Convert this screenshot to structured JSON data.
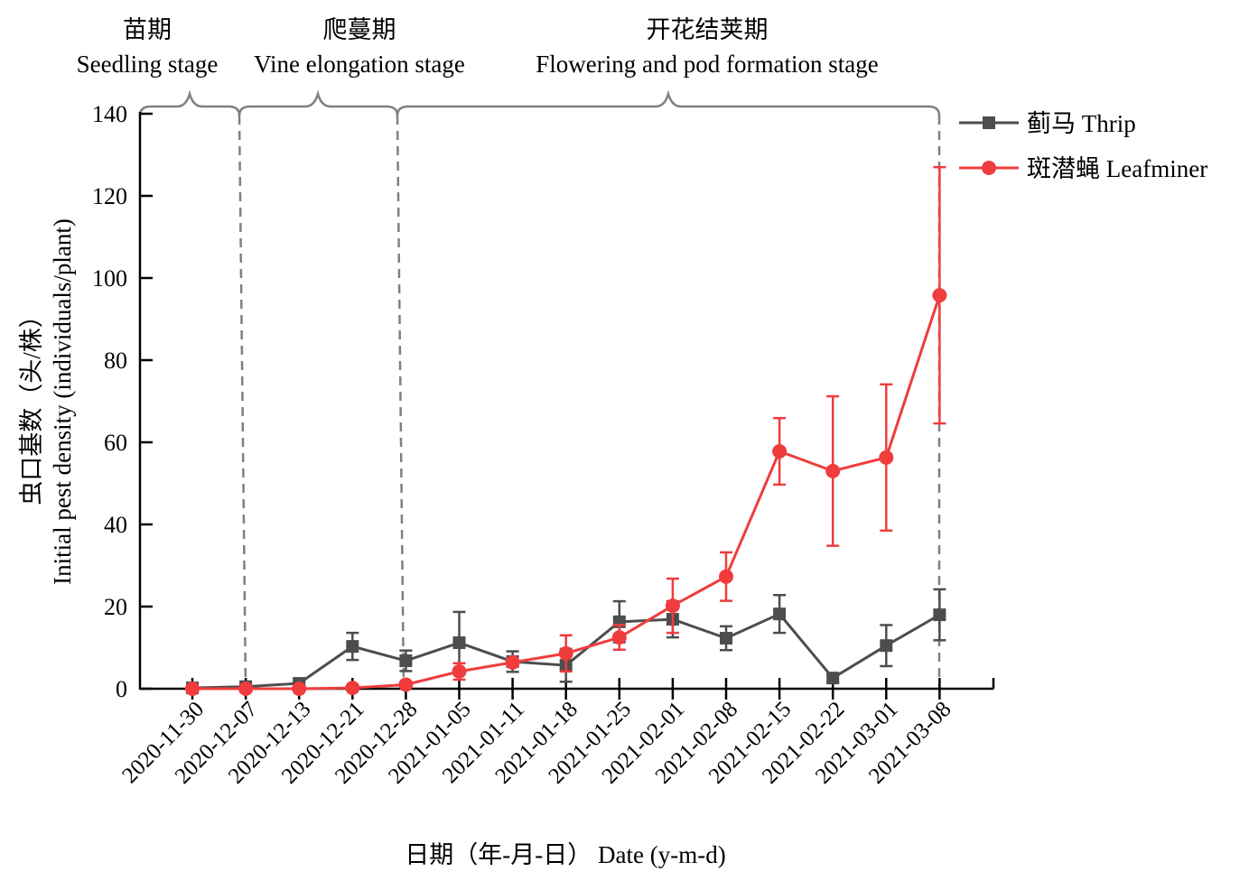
{
  "chart_data": {
    "type": "line",
    "xlabel": "日期（年-月-日） Date (y-m-d)",
    "ylabel_cn": "虫口基数（头/株）",
    "ylabel_en": "Initial pest density (individuals/plant)",
    "ylim": [
      0,
      140
    ],
    "yticks": [
      0,
      20,
      40,
      60,
      80,
      100,
      120,
      140
    ],
    "grid": false,
    "legend_position": "top-right",
    "categories": [
      "2020-11-30",
      "2020-12-07",
      "2020-12-13",
      "2020-12-21",
      "2020-12-28",
      "2021-01-05",
      "2021-01-11",
      "2021-01-18",
      "2021-01-25",
      "2021-02-01",
      "2021-02-08",
      "2021-02-15",
      "2021-02-22",
      "2021-03-01",
      "2021-03-08"
    ],
    "series": [
      {
        "name": "蓟马 Thrip",
        "color": "#4d4d4d",
        "marker": "square",
        "values": [
          0.2,
          0.5,
          1.3,
          10.3,
          6.8,
          11.2,
          6.6,
          5.7,
          16.3,
          16.9,
          12.3,
          18.2,
          2.6,
          10.5,
          18.0
        ],
        "errors": [
          0,
          0,
          0.5,
          3.3,
          2.5,
          7.5,
          2.5,
          4.0,
          5.0,
          4.4,
          2.9,
          4.6,
          1.0,
          5.0,
          6.2
        ]
      },
      {
        "name": "斑潜蝇 Leafminer",
        "color": "#f03c3c",
        "marker": "circle",
        "values": [
          0,
          0,
          0,
          0.2,
          1.0,
          4.2,
          6.4,
          8.6,
          12.5,
          20.2,
          27.3,
          57.8,
          53.0,
          56.3,
          95.8
        ],
        "errors": [
          0,
          0,
          0,
          0,
          0.5,
          2.0,
          1.0,
          4.4,
          3.0,
          6.6,
          5.9,
          8.1,
          18.2,
          17.8,
          31.2
        ]
      }
    ],
    "stages": [
      {
        "cn": "苗期",
        "en": "Seedling stage"
      },
      {
        "cn": "爬蔓期",
        "en": "Vine elongation stage"
      },
      {
        "cn": "开花结荚期",
        "en": "Flowering and pod formation stage"
      }
    ]
  }
}
